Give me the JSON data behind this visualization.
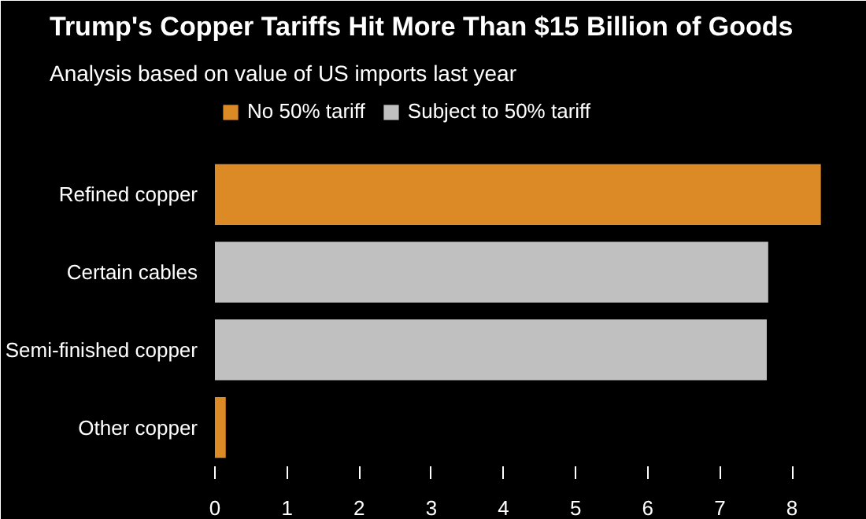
{
  "chart_data": {
    "type": "bar",
    "orientation": "horizontal",
    "title": "Trump's Copper Tariffs Hit More Than $15 Billion of Goods",
    "subtitle": "Analysis based on value of US imports last year",
    "categories": [
      "Refined copper",
      "Certain cables",
      "Semi-finished copper",
      "Other copper"
    ],
    "series": [
      {
        "name": "No 50% tariff",
        "color": "#dc8a26",
        "values": [
          8.4,
          null,
          null,
          0.15
        ]
      },
      {
        "name": "Subject to 50% tariff",
        "color": "#c0c0c0",
        "values": [
          null,
          7.67,
          7.65,
          null
        ]
      }
    ],
    "xlim": [
      0,
      8.6
    ],
    "xticks": [
      0,
      1,
      2,
      3,
      4,
      5,
      6,
      7,
      8
    ],
    "legend": "top left",
    "grid": false
  }
}
